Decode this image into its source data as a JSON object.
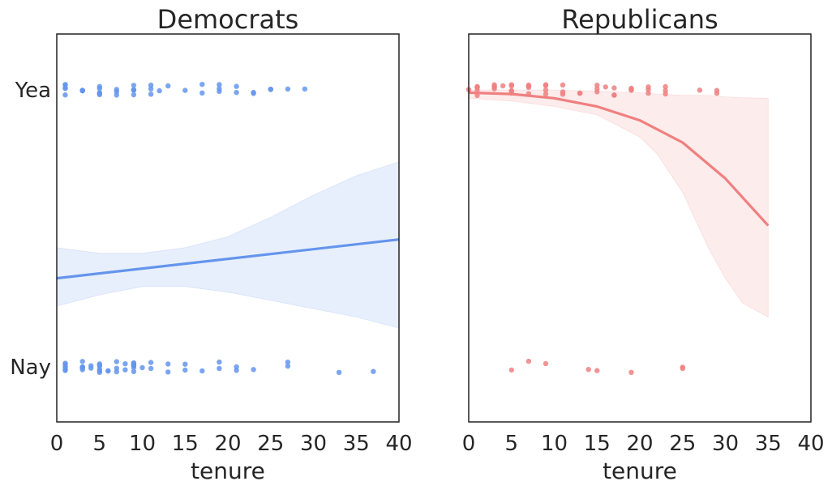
{
  "chart_data": [
    {
      "type": "scatter",
      "title": "Democrats",
      "xlabel": "tenure",
      "ylabel": "",
      "xlim": [
        0,
        40
      ],
      "xticks": [
        0,
        5,
        10,
        15,
        20,
        25,
        30,
        35,
        40
      ],
      "y_categories": [
        "Nay",
        "Yea"
      ],
      "color": "#6495ED",
      "points_yea_tenure": [
        1,
        1,
        1,
        1,
        1,
        3,
        3,
        3,
        3,
        3,
        5,
        5,
        5,
        5,
        5,
        7,
        7,
        7,
        9,
        9,
        9,
        9,
        9,
        11,
        11,
        11,
        12,
        13,
        15,
        17,
        17,
        19,
        19,
        19,
        21,
        21,
        23,
        23,
        25,
        25,
        27,
        29
      ],
      "points_nay_tenure": [
        1,
        1,
        1,
        1,
        1,
        1,
        3,
        3,
        3,
        3,
        3,
        3,
        4,
        4,
        5,
        5,
        5,
        5,
        5,
        5,
        6,
        6,
        7,
        7,
        7,
        8,
        8,
        9,
        9,
        9,
        9,
        9,
        9,
        9,
        10,
        11,
        11,
        13,
        13,
        15,
        15,
        17,
        19,
        19,
        21,
        21,
        23,
        27,
        27,
        33,
        37
      ],
      "fit_x": [
        0,
        40
      ],
      "fit_y": [
        0.32,
        0.46
      ],
      "band_x": [
        0,
        5,
        10,
        15,
        20,
        25,
        30,
        35,
        40
      ],
      "band_upper": [
        0.43,
        0.41,
        0.41,
        0.43,
        0.47,
        0.54,
        0.62,
        0.69,
        0.74
      ],
      "band_lower": [
        0.22,
        0.26,
        0.29,
        0.29,
        0.27,
        0.24,
        0.21,
        0.18,
        0.14
      ]
    },
    {
      "type": "scatter",
      "title": "Republicans",
      "xlabel": "tenure",
      "ylabel": "",
      "xlim": [
        0,
        40
      ],
      "xticks": [
        0,
        5,
        10,
        15,
        20,
        25,
        30,
        35,
        40
      ],
      "y_categories": [
        "Nay",
        "Yea"
      ],
      "color": "#F08080",
      "points_yea_tenure": [
        0,
        1,
        1,
        1,
        1,
        1,
        3,
        3,
        3,
        3,
        4,
        5,
        5,
        5,
        5,
        5,
        7,
        7,
        7,
        7,
        9,
        9,
        9,
        9,
        11,
        11,
        11,
        13,
        13,
        15,
        15,
        15,
        16,
        17,
        17,
        17,
        19,
        19,
        19,
        21,
        21,
        21,
        23,
        23,
        23,
        27,
        29,
        29
      ],
      "points_nay_tenure": [
        5,
        7,
        9,
        14,
        15,
        19,
        25,
        25
      ],
      "fit_x": [
        0,
        5,
        10,
        15,
        20,
        25,
        30,
        35
      ],
      "fit_y": [
        0.99,
        0.985,
        0.97,
        0.94,
        0.89,
        0.81,
        0.68,
        0.51
      ],
      "band_x": [
        0,
        5,
        10,
        15,
        20,
        22,
        25,
        28,
        30,
        32,
        35
      ],
      "band_upper": [
        1.0,
        1.0,
        1.0,
        0.995,
        0.99,
        0.985,
        0.98,
        0.98,
        0.975,
        0.972,
        0.97
      ],
      "band_lower": [
        0.97,
        0.96,
        0.94,
        0.91,
        0.83,
        0.77,
        0.63,
        0.43,
        0.32,
        0.23,
        0.18
      ]
    }
  ]
}
